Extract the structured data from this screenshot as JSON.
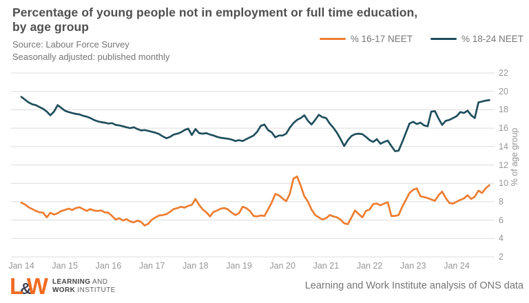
{
  "header": {
    "title_line1": "Percentage of young people not in employment or full time education,",
    "title_line2": "by age group",
    "source": "Source: Labour Force Survey",
    "note": "Seasonally adjusted: published monthly"
  },
  "legend": [
    {
      "label": "% 16-17 NEET",
      "color": "#ED7D31"
    },
    {
      "label": "% 18-24 NEET",
      "color": "#1F4E5C"
    }
  ],
  "footer": {
    "logo": {
      "l": "L",
      "amp": "&",
      "w": "W",
      "line1_bold": "LEARNING",
      "line1_rest": " AND",
      "line2_bold": "WORK",
      "line2_rest": " INSTITUTE"
    },
    "credit": "Learning and Work Institute analysis of ONS data"
  },
  "chart_data": {
    "type": "line",
    "title": "Percentage of young people not in employment or full time education, by age group",
    "xlabel": "",
    "ylabel": "% of age group",
    "ylim": [
      2,
      22
    ],
    "y_ticks": [
      2,
      4,
      6,
      8,
      10,
      12,
      14,
      16,
      18,
      20,
      22
    ],
    "x_tick_labels": [
      "Jan 14",
      "Jan 15",
      "Jan 16",
      "Jan 17",
      "Jan 18",
      "Jan 19",
      "Jan 20",
      "Jan 21",
      "Jan 22",
      "Jan 23",
      "Jan 24"
    ],
    "x_frequency": "monthly",
    "x_start": "Jan 2014",
    "x_end": "Oct 2024",
    "grid": "horizontal",
    "legend_position": "top-right",
    "colors": {
      "grid": "#dcdcdc",
      "tick_text": "#969696"
    },
    "series": [
      {
        "name": "% 16-17 NEET",
        "color": "#ED7D31",
        "values": [
          7.9,
          7.7,
          7.4,
          7.2,
          7.0,
          6.85,
          6.8,
          6.3,
          6.8,
          6.6,
          6.75,
          7.0,
          7.1,
          7.25,
          7.1,
          7.3,
          7.4,
          7.2,
          7.0,
          7.2,
          7.05,
          7.0,
          7.05,
          6.85,
          6.8,
          6.45,
          6.05,
          6.2,
          5.95,
          6.1,
          5.85,
          5.75,
          5.95,
          5.8,
          5.4,
          5.6,
          6.05,
          6.3,
          6.5,
          6.55,
          6.65,
          6.9,
          7.2,
          7.3,
          7.45,
          7.35,
          7.55,
          7.65,
          8.3,
          7.65,
          7.15,
          6.85,
          6.4,
          6.9,
          7.05,
          7.25,
          7.3,
          7.15,
          6.8,
          6.55,
          6.75,
          7.45,
          7.3,
          7.0,
          6.45,
          6.4,
          6.5,
          6.45,
          7.15,
          7.9,
          8.85,
          8.7,
          8.35,
          8.05,
          8.85,
          10.5,
          10.75,
          9.75,
          8.6,
          8.0,
          7.15,
          6.55,
          6.3,
          6.05,
          6.2,
          6.55,
          6.4,
          6.3,
          6.05,
          5.65,
          5.55,
          6.3,
          7.05,
          6.65,
          6.3,
          7.0,
          7.15,
          7.75,
          7.8,
          7.6,
          7.8,
          7.95,
          6.45,
          6.45,
          6.55,
          7.45,
          8.2,
          8.95,
          9.3,
          9.45,
          8.6,
          8.5,
          8.4,
          8.25,
          8.1,
          8.7,
          9.1,
          8.4,
          7.85,
          7.8,
          8.0,
          8.2,
          8.35,
          8.7,
          8.3,
          8.55,
          9.2,
          8.95,
          9.45,
          9.8
        ]
      },
      {
        "name": "% 18-24 NEET",
        "color": "#1F4E5C",
        "values": [
          19.4,
          19.1,
          18.8,
          18.6,
          18.5,
          18.3,
          18.1,
          17.8,
          17.4,
          17.8,
          18.5,
          18.2,
          17.9,
          17.75,
          17.65,
          17.55,
          17.5,
          17.35,
          17.25,
          17.1,
          16.9,
          16.75,
          16.65,
          16.6,
          16.5,
          16.55,
          16.35,
          16.3,
          16.2,
          16.1,
          16.0,
          16.1,
          15.9,
          15.75,
          15.8,
          15.7,
          15.6,
          15.5,
          15.35,
          15.1,
          14.9,
          15.05,
          15.3,
          15.4,
          15.55,
          15.8,
          15.95,
          15.25,
          15.9,
          15.45,
          15.4,
          15.45,
          15.3,
          15.2,
          15.05,
          14.95,
          14.9,
          14.85,
          14.75,
          14.6,
          14.7,
          14.6,
          14.8,
          15.0,
          15.2,
          15.6,
          16.25,
          16.4,
          15.8,
          15.55,
          15.0,
          15.2,
          15.2,
          15.4,
          16.05,
          16.55,
          16.9,
          17.1,
          17.4,
          16.8,
          16.4,
          16.9,
          17.45,
          17.2,
          17.1,
          16.5,
          16.05,
          15.5,
          14.8,
          14.05,
          14.7,
          15.15,
          15.35,
          15.4,
          15.35,
          15.05,
          14.7,
          14.5,
          14.8,
          14.3,
          14.5,
          14.65,
          14.05,
          13.5,
          13.55,
          14.5,
          15.5,
          16.5,
          16.7,
          16.45,
          16.6,
          16.3,
          16.2,
          17.8,
          17.85,
          17.05,
          16.35,
          16.8,
          16.9,
          17.1,
          17.3,
          17.75,
          17.65,
          17.9,
          17.4,
          17.1,
          18.8,
          18.9,
          19.0,
          19.05
        ]
      }
    ]
  }
}
